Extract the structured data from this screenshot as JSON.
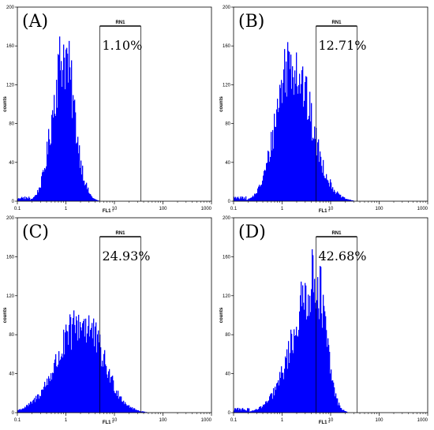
{
  "chart_data": [
    {
      "type": "bar",
      "panel": "(A)",
      "gate_label": "RN1",
      "gate_percent": "1.10%",
      "gate_range": [
        5,
        35
      ],
      "xlabel": "FL1 -",
      "ylabel": "counts",
      "xscale": "log",
      "xlim": [
        0.1,
        1000
      ],
      "ylim": [
        0,
        200
      ],
      "xticks": [
        "0.1",
        "1",
        "10",
        "100",
        "1000"
      ],
      "yticks": [
        "0",
        "40",
        "80",
        "120",
        "160",
        "200"
      ],
      "distribution": {
        "peak_x": 0.9,
        "peak_count": 155,
        "spread_left": 0.23,
        "spread_right": 0.22
      }
    },
    {
      "type": "bar",
      "panel": "(B)",
      "gate_label": "RN1",
      "gate_percent": "12.71%",
      "gate_range": [
        5,
        35
      ],
      "xlabel": "FL1 -",
      "ylabel": "counts",
      "xscale": "log",
      "xlim": [
        0.1,
        1000
      ],
      "ylim": [
        0,
        200
      ],
      "xticks": [
        "0.1",
        "1",
        "10",
        "100",
        "1000"
      ],
      "yticks": [
        "0",
        "40",
        "80",
        "120",
        "160",
        "200"
      ],
      "distribution": {
        "peak_x": 1.5,
        "peak_count": 150,
        "spread_left": 0.3,
        "spread_right": 0.4
      }
    },
    {
      "type": "bar",
      "panel": "(C)",
      "gate_label": "RN1",
      "gate_percent": "24.93%",
      "gate_range": [
        5,
        35
      ],
      "xlabel": "FL1 -",
      "ylabel": "counts",
      "xscale": "log",
      "xlim": [
        0.1,
        1000
      ],
      "ylim": [
        0,
        200
      ],
      "xticks": [
        "0.1",
        "1",
        "10",
        "100",
        "1000"
      ],
      "yticks": [
        "0",
        "40",
        "80",
        "120",
        "160",
        "200"
      ],
      "distribution": {
        "peak_x": 2.2,
        "peak_count": 95,
        "spread_left": 0.5,
        "spread_right": 0.42
      }
    },
    {
      "type": "bar",
      "panel": "(D)",
      "gate_label": "RN1",
      "gate_percent": "42.68%",
      "gate_range": [
        5,
        35
      ],
      "xlabel": "FL1 -",
      "ylabel": "counts",
      "xscale": "log",
      "xlim": [
        0.1,
        1000
      ],
      "ylim": [
        0,
        200
      ],
      "xticks": [
        "0.1",
        "1",
        "10",
        "100",
        "1000"
      ],
      "yticks": [
        "0",
        "40",
        "80",
        "120",
        "160",
        "200"
      ],
      "distribution": {
        "peak_x": 5.0,
        "peak_count": 140,
        "spread_left": 0.45,
        "spread_right": 0.2
      }
    }
  ],
  "colors": {
    "histogram": "#0000ff",
    "axes": "#000000",
    "background": "#ffffff"
  }
}
